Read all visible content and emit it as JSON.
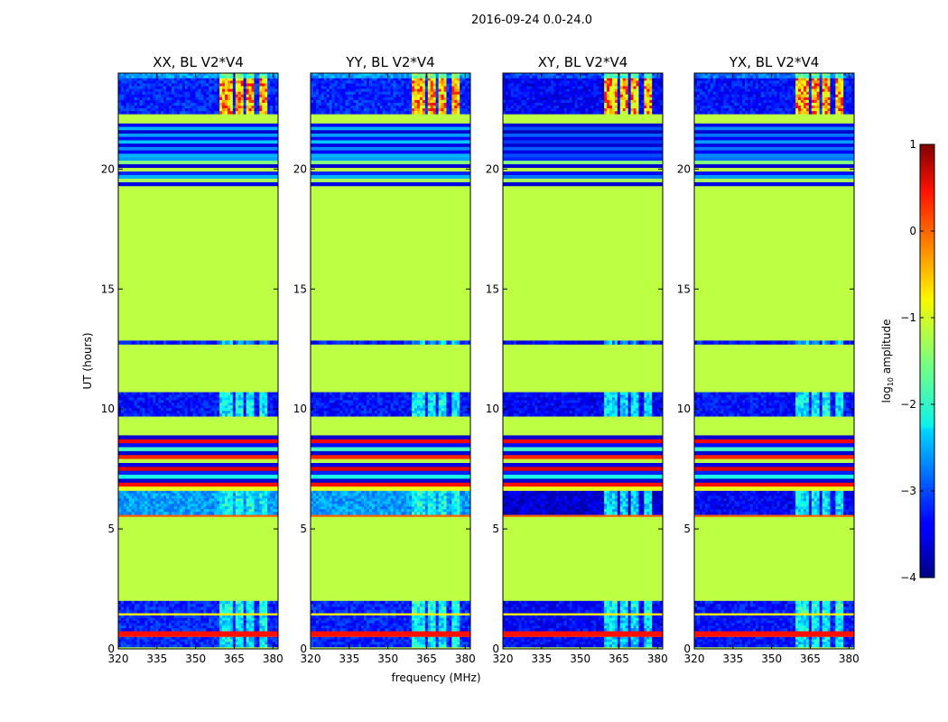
{
  "figure": {
    "suptitle": "2016-09-24 0.0-24.0",
    "shared_xlabel": "frequency (MHz)",
    "shared_ylabel": "UT (hours)"
  },
  "chart_data": {
    "type": "heatmap",
    "xlabel": "frequency (MHz)",
    "ylabel": "UT (hours)",
    "xlim": [
      320,
      382
    ],
    "ylim": [
      0,
      24
    ],
    "xticks": [
      320,
      335,
      350,
      365,
      380
    ],
    "yticks": [
      0,
      5,
      10,
      15,
      20
    ],
    "colorbar": {
      "label_text": "log",
      "label_sub": "10",
      "label_suffix": " amplitude",
      "range": [
        -4,
        1
      ],
      "ticks": [
        -4,
        -3,
        -2,
        -1,
        0,
        1
      ],
      "tick_labels": [
        "−4",
        "−3",
        "−2",
        "−1",
        "0",
        "1"
      ],
      "colormap": "jet"
    },
    "rfi_channels_mhz": [
      [
        359.5,
        364
      ],
      [
        365,
        368.5
      ],
      [
        369.5,
        373
      ],
      [
        374.5,
        377.5
      ]
    ],
    "flagged_value": -1.2,
    "panels": [
      {
        "title": "XX, BL V2*V4",
        "segments": [
          {
            "t0": 0,
            "t1": 0.08,
            "kind": "flag"
          },
          {
            "t0": 0.08,
            "t1": 0.5,
            "kind": "noise",
            "level": -3.2,
            "rfi": -2.2
          },
          {
            "t0": 0.5,
            "t1": 0.75,
            "kind": "line",
            "level": 0.3
          },
          {
            "t0": 0.75,
            "t1": 1.4,
            "kind": "noise",
            "level": -3.2,
            "rfi": -2.2
          },
          {
            "t0": 1.4,
            "t1": 1.5,
            "kind": "line",
            "level": -0.8
          },
          {
            "t0": 1.5,
            "t1": 2.0,
            "kind": "noise",
            "level": -3.2,
            "rfi": -2.0
          },
          {
            "t0": 2.0,
            "t1": 5.5,
            "kind": "flag"
          },
          {
            "t0": 5.5,
            "t1": 5.6,
            "kind": "line",
            "level": -0.1
          },
          {
            "t0": 5.6,
            "t1": 6.6,
            "kind": "noise",
            "level": -2.6,
            "rfi": -2.1
          },
          {
            "t0": 6.6,
            "t1": 8.9,
            "kind": "stripes",
            "stripes": [
              -3.6,
              0.4,
              -3.3,
              -1.8,
              -3.6,
              0.2,
              -1.2,
              -3.5,
              0.5,
              -3.2,
              -2.0,
              -3.6,
              0.3,
              -1.0
            ]
          },
          {
            "t0": 8.9,
            "t1": 9.7,
            "kind": "flag"
          },
          {
            "t0": 9.7,
            "t1": 10.7,
            "kind": "noise",
            "level": -3.3,
            "rfi": -2.2
          },
          {
            "t0": 10.7,
            "t1": 12.7,
            "kind": "flag"
          },
          {
            "t0": 12.7,
            "t1": 12.85,
            "kind": "noise",
            "level": -3.3,
            "rfi": -2.5
          },
          {
            "t0": 12.85,
            "t1": 19.3,
            "kind": "flag"
          },
          {
            "t0": 19.3,
            "t1": 20.5,
            "kind": "stripes",
            "stripes": [
              -2.6,
              -1.5,
              -3.6,
              -1.2,
              -3.2,
              -2.5,
              -1.3,
              -3.5
            ]
          },
          {
            "t0": 20.5,
            "t1": 21.9,
            "kind": "stripes",
            "stripes": [
              -3.4,
              -2.5,
              -3.6,
              -2.6,
              -3.3,
              -2.4,
              -3.5,
              -2.7,
              -3.4,
              -2.5
            ]
          },
          {
            "t0": 21.9,
            "t1": 22.3,
            "kind": "flag"
          },
          {
            "t0": 22.3,
            "t1": 23.8,
            "kind": "noise",
            "level": -3.2,
            "rfi": -0.7,
            "hot": true
          },
          {
            "t0": 23.8,
            "t1": 24,
            "kind": "noise",
            "level": -2.6,
            "rfi": -1.6
          }
        ]
      },
      {
        "title": "YY, BL V2*V4",
        "segments": [
          {
            "t0": 0,
            "t1": 0.08,
            "kind": "flag"
          },
          {
            "t0": 0.08,
            "t1": 0.5,
            "kind": "noise",
            "level": -3.2,
            "rfi": -2.2
          },
          {
            "t0": 0.5,
            "t1": 0.75,
            "kind": "line",
            "level": 0.3
          },
          {
            "t0": 0.75,
            "t1": 1.4,
            "kind": "noise",
            "level": -3.2,
            "rfi": -2.2
          },
          {
            "t0": 1.4,
            "t1": 1.5,
            "kind": "line",
            "level": -0.8
          },
          {
            "t0": 1.5,
            "t1": 2.0,
            "kind": "noise",
            "level": -3.2,
            "rfi": -2.0
          },
          {
            "t0": 2.0,
            "t1": 5.5,
            "kind": "flag"
          },
          {
            "t0": 5.5,
            "t1": 5.6,
            "kind": "line",
            "level": -0.1
          },
          {
            "t0": 5.6,
            "t1": 6.6,
            "kind": "noise",
            "level": -2.6,
            "rfi": -2.1
          },
          {
            "t0": 6.6,
            "t1": 8.9,
            "kind": "stripes",
            "stripes": [
              -3.6,
              0.4,
              -3.3,
              -1.8,
              -3.6,
              0.2,
              -1.2,
              -3.5,
              0.5,
              -3.2,
              -2.0,
              -3.6,
              0.3,
              -1.0
            ]
          },
          {
            "t0": 8.9,
            "t1": 9.7,
            "kind": "flag"
          },
          {
            "t0": 9.7,
            "t1": 10.7,
            "kind": "noise",
            "level": -3.3,
            "rfi": -2.2
          },
          {
            "t0": 10.7,
            "t1": 12.7,
            "kind": "flag"
          },
          {
            "t0": 12.7,
            "t1": 12.85,
            "kind": "noise",
            "level": -3.3,
            "rfi": -2.5
          },
          {
            "t0": 12.85,
            "t1": 19.3,
            "kind": "flag"
          },
          {
            "t0": 19.3,
            "t1": 20.5,
            "kind": "stripes",
            "stripes": [
              -2.6,
              -1.5,
              -3.6,
              -1.2,
              -3.2,
              -2.5,
              -1.3,
              -3.5
            ]
          },
          {
            "t0": 20.5,
            "t1": 21.9,
            "kind": "stripes",
            "stripes": [
              -3.4,
              -2.5,
              -3.6,
              -2.6,
              -3.3,
              -2.4,
              -3.5,
              -2.7,
              -3.4,
              -2.5
            ]
          },
          {
            "t0": 21.9,
            "t1": 22.3,
            "kind": "flag"
          },
          {
            "t0": 22.3,
            "t1": 23.8,
            "kind": "noise",
            "level": -3.2,
            "rfi": -0.7,
            "hot": true
          },
          {
            "t0": 23.8,
            "t1": 24,
            "kind": "noise",
            "level": -2.6,
            "rfi": -1.6
          }
        ]
      },
      {
        "title": "XY, BL V2*V4",
        "segments": [
          {
            "t0": 0,
            "t1": 0.08,
            "kind": "flag"
          },
          {
            "t0": 0.08,
            "t1": 0.5,
            "kind": "noise",
            "level": -3.4,
            "rfi": -2.3
          },
          {
            "t0": 0.5,
            "t1": 0.75,
            "kind": "line",
            "level": 0.3
          },
          {
            "t0": 0.75,
            "t1": 1.4,
            "kind": "noise",
            "level": -3.4,
            "rfi": -2.3
          },
          {
            "t0": 1.4,
            "t1": 1.5,
            "kind": "line",
            "level": -0.8
          },
          {
            "t0": 1.5,
            "t1": 2.0,
            "kind": "noise",
            "level": -3.4,
            "rfi": -2.1
          },
          {
            "t0": 2.0,
            "t1": 5.5,
            "kind": "flag"
          },
          {
            "t0": 5.5,
            "t1": 5.6,
            "kind": "line",
            "level": -0.1
          },
          {
            "t0": 5.6,
            "t1": 6.6,
            "kind": "noise",
            "level": -3.6,
            "rfi": -2.3
          },
          {
            "t0": 6.6,
            "t1": 8.9,
            "kind": "stripes",
            "stripes": [
              -3.6,
              0.4,
              -3.3,
              -1.8,
              -3.6,
              0.2,
              -1.2,
              -3.5,
              0.5,
              -3.2,
              -2.0,
              -3.6,
              0.3,
              -1.0
            ]
          },
          {
            "t0": 8.9,
            "t1": 9.7,
            "kind": "flag"
          },
          {
            "t0": 9.7,
            "t1": 10.7,
            "kind": "noise",
            "level": -3.4,
            "rfi": -2.3
          },
          {
            "t0": 10.7,
            "t1": 12.7,
            "kind": "flag"
          },
          {
            "t0": 12.7,
            "t1": 12.85,
            "kind": "noise",
            "level": -3.4,
            "rfi": -2.6
          },
          {
            "t0": 12.85,
            "t1": 19.3,
            "kind": "flag"
          },
          {
            "t0": 19.3,
            "t1": 20.5,
            "kind": "stripes",
            "stripes": [
              -3.2,
              -1.5,
              -3.6,
              -1.2,
              -3.4,
              -2.8,
              -1.3,
              -3.6
            ]
          },
          {
            "t0": 20.5,
            "t1": 21.9,
            "kind": "stripes",
            "stripes": [
              -3.6,
              -3.0,
              -3.7,
              -2.9,
              -3.5,
              -3.1,
              -3.6,
              -2.9,
              -3.5,
              -3.0
            ]
          },
          {
            "t0": 21.9,
            "t1": 22.3,
            "kind": "flag"
          },
          {
            "t0": 22.3,
            "t1": 23.8,
            "kind": "noise",
            "level": -3.4,
            "rfi": -0.8,
            "hot": true
          },
          {
            "t0": 23.8,
            "t1": 24,
            "kind": "noise",
            "level": -3.0,
            "rfi": -1.8
          }
        ]
      },
      {
        "title": "YX, BL V2*V4",
        "segments": [
          {
            "t0": 0,
            "t1": 0.08,
            "kind": "flag"
          },
          {
            "t0": 0.08,
            "t1": 0.5,
            "kind": "noise",
            "level": -3.3,
            "rfi": -2.2
          },
          {
            "t0": 0.5,
            "t1": 0.75,
            "kind": "line",
            "level": 0.3
          },
          {
            "t0": 0.75,
            "t1": 1.4,
            "kind": "noise",
            "level": -3.3,
            "rfi": -2.2
          },
          {
            "t0": 1.4,
            "t1": 1.5,
            "kind": "line",
            "level": -0.8
          },
          {
            "t0": 1.5,
            "t1": 2.0,
            "kind": "noise",
            "level": -3.3,
            "rfi": -2.0
          },
          {
            "t0": 2.0,
            "t1": 5.5,
            "kind": "flag"
          },
          {
            "t0": 5.5,
            "t1": 5.6,
            "kind": "line",
            "level": -0.1
          },
          {
            "t0": 5.6,
            "t1": 6.6,
            "kind": "noise",
            "level": -3.4,
            "rfi": -2.2
          },
          {
            "t0": 6.6,
            "t1": 8.9,
            "kind": "stripes",
            "stripes": [
              -3.6,
              0.4,
              -3.3,
              -1.8,
              -3.6,
              0.2,
              -1.2,
              -3.5,
              0.5,
              -3.2,
              -2.0,
              -3.6,
              0.3,
              -1.0
            ]
          },
          {
            "t0": 8.9,
            "t1": 9.7,
            "kind": "flag"
          },
          {
            "t0": 9.7,
            "t1": 10.7,
            "kind": "noise",
            "level": -3.3,
            "rfi": -2.2
          },
          {
            "t0": 10.7,
            "t1": 12.7,
            "kind": "flag"
          },
          {
            "t0": 12.7,
            "t1": 12.85,
            "kind": "noise",
            "level": -3.3,
            "rfi": -2.5
          },
          {
            "t0": 12.85,
            "t1": 19.3,
            "kind": "flag"
          },
          {
            "t0": 19.3,
            "t1": 20.5,
            "kind": "stripes",
            "stripes": [
              -2.8,
              -1.5,
              -3.6,
              -1.2,
              -3.3,
              -2.6,
              -1.3,
              -3.5
            ]
          },
          {
            "t0": 20.5,
            "t1": 21.9,
            "kind": "stripes",
            "stripes": [
              -3.5,
              -2.7,
              -3.6,
              -2.8,
              -3.4,
              -2.6,
              -3.5,
              -2.8,
              -3.4,
              -2.7
            ]
          },
          {
            "t0": 21.9,
            "t1": 22.3,
            "kind": "flag"
          },
          {
            "t0": 22.3,
            "t1": 23.8,
            "kind": "noise",
            "level": -3.3,
            "rfi": -0.7,
            "hot": true
          },
          {
            "t0": 23.8,
            "t1": 24,
            "kind": "noise",
            "level": -2.8,
            "rfi": -1.7
          }
        ]
      }
    ]
  }
}
